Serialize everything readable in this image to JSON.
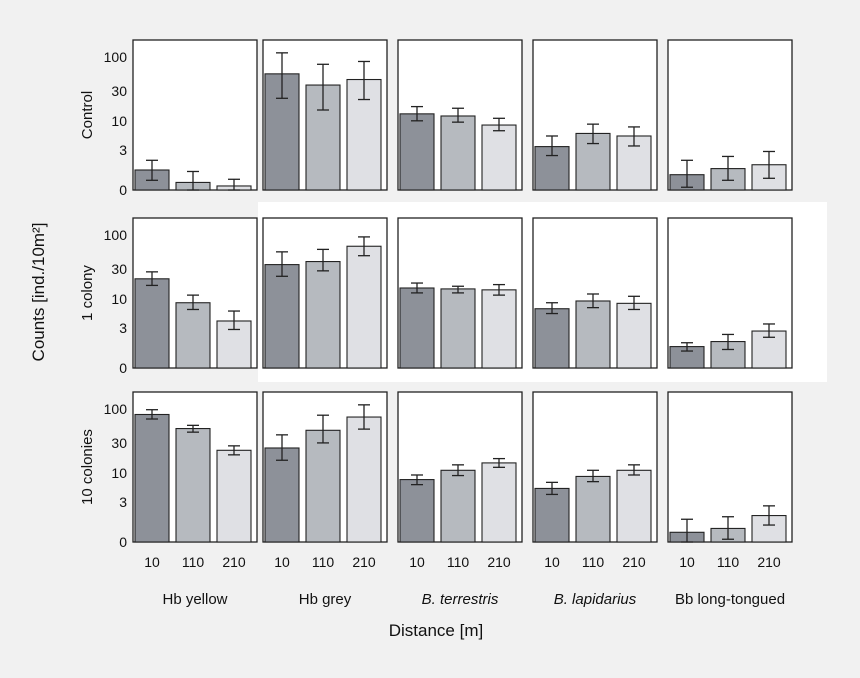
{
  "chart_data": {
    "type": "bar",
    "yscale": "log(count+1)",
    "ylabel": "Counts [ind./10m²]",
    "xlabel": "Distance [m]",
    "categories": [
      "10",
      "110",
      "210"
    ],
    "yticks": [
      "0",
      "3",
      "10",
      "30",
      "100"
    ],
    "ytick_values": [
      0,
      3,
      10,
      30,
      100
    ],
    "ylim": [
      0,
      180
    ],
    "colors": [
      "#8d9199",
      "#b6babf",
      "#dfe0e4"
    ],
    "columns": [
      "Hb yellow",
      "Hb grey",
      "B. terrestris",
      "B. lapidarius",
      "Bb long-tongued"
    ],
    "columns_italic": [
      false,
      false,
      true,
      true,
      false
    ],
    "rows": [
      "Control",
      "1 colony",
      "10 colonies"
    ],
    "panels": [
      [
        {
          "values": [
            1.0,
            0.3,
            0.15
          ],
          "err": [
            [
              0.4,
              1.8
            ],
            [
              0.0,
              0.9
            ],
            [
              0.0,
              0.45
            ]
          ]
        },
        {
          "values": [
            55,
            37,
            45
          ],
          "err": [
            [
              23,
              115
            ],
            [
              15,
              77
            ],
            [
              22,
              85
            ]
          ]
        },
        {
          "values": [
            13,
            12,
            8.5
          ],
          "err": [
            [
              10,
              17
            ],
            [
              9.5,
              16
            ],
            [
              6.8,
              11
            ]
          ]
        },
        {
          "values": [
            3.5,
            6.1,
            5.5
          ],
          "err": [
            [
              2.3,
              5.5
            ],
            [
              4.0,
              8.8
            ],
            [
              3.6,
              7.9
            ]
          ]
        },
        {
          "values": [
            0.7,
            1.1,
            1.4
          ],
          "err": [
            [
              0.1,
              1.8
            ],
            [
              0.4,
              2.2
            ],
            [
              0.5,
              2.8
            ]
          ]
        }
      ],
      [
        {
          "values": [
            21,
            8.6,
            4.1
          ],
          "err": [
            [
              16.5,
              27
            ],
            [
              6.6,
              11.5
            ],
            [
              2.8,
              6.2
            ]
          ]
        },
        {
          "values": [
            35,
            39,
            67
          ],
          "err": [
            [
              23,
              55
            ],
            [
              28,
              60
            ],
            [
              48,
              93
            ]
          ]
        },
        {
          "values": [
            15,
            14.5,
            14
          ],
          "err": [
            [
              12.5,
              18
            ],
            [
              12.5,
              16
            ],
            [
              11.5,
              17
            ]
          ]
        },
        {
          "values": [
            6.8,
            9.2,
            8.4
          ],
          "err": [
            [
              5.6,
              8.6
            ],
            [
              7.1,
              12
            ],
            [
              6.6,
              11
            ]
          ]
        },
        {
          "values": [
            1.1,
            1.5,
            2.6
          ],
          "err": [
            [
              0.8,
              1.4
            ],
            [
              0.9,
              2.2
            ],
            [
              1.9,
              3.6
            ]
          ]
        }
      ],
      [
        {
          "values": [
            82,
            50,
            23
          ],
          "err": [
            [
              70,
              97
            ],
            [
              44,
              56
            ],
            [
              19.5,
              27
            ]
          ]
        },
        {
          "values": [
            25,
            47,
            75
          ],
          "err": [
            [
              16,
              40
            ],
            [
              30,
              80
            ],
            [
              49,
              115
            ]
          ]
        },
        {
          "values": [
            7.7,
            11,
            14.5
          ],
          "err": [
            [
              6.3,
              9.2
            ],
            [
              9.0,
              13.5
            ],
            [
              12.3,
              17
            ]
          ]
        },
        {
          "values": [
            5.4,
            8.7,
            11
          ],
          "err": [
            [
              4.2,
              6.9
            ],
            [
              7.1,
              11
            ],
            [
              9.2,
              13.5
            ]
          ]
        },
        {
          "values": [
            0.4,
            0.6,
            1.5
          ],
          "err": [
            [
              0.0,
              1.2
            ],
            [
              0.1,
              1.4
            ],
            [
              0.8,
              2.5
            ]
          ]
        }
      ]
    ]
  }
}
